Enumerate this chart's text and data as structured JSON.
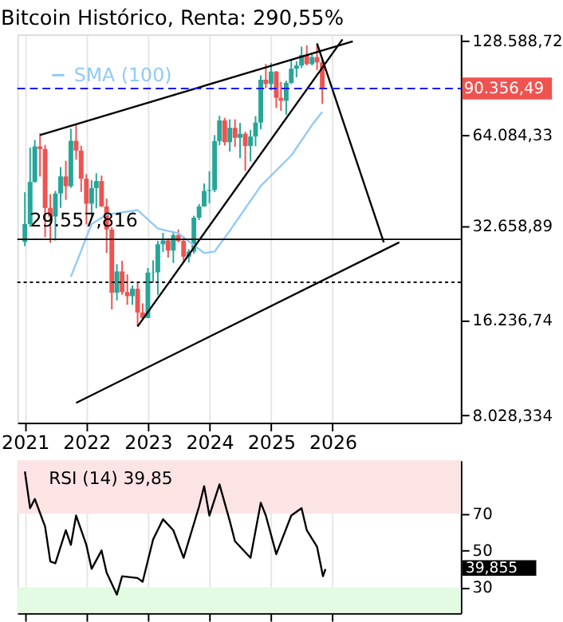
{
  "chart_data": [
    {
      "type": "candlestick",
      "title": "Bitcoin Histórico, Renta: 290,55%",
      "log": "y",
      "grid": "x",
      "legend": "top left",
      "xlim": [
        "2020-11-17",
        "2028-02-01"
      ],
      "xticks": [
        "2021",
        "2022",
        "2023",
        "2024",
        "2025",
        "2026"
      ],
      "ylim": [
        7600,
        135000
      ],
      "yticks": [
        {
          "value": 128588.72,
          "label": "128.588,72"
        },
        {
          "value": 64084.33,
          "label": "64.084,33"
        },
        {
          "value": 32658.89,
          "label": "32.658,89"
        },
        {
          "value": 16236.74,
          "label": "16.236,74"
        },
        {
          "value": 8028.334,
          "label": "8.028,334"
        }
      ],
      "ref_lines": [
        {
          "axis": "y",
          "value": 90356.49,
          "label": "90.356,49",
          "color": "#1a1aff",
          "line_style": "dashed"
        },
        {
          "axis": "y",
          "value": 29557.816,
          "label": "29.557,816",
          "color": "#000000",
          "line_style": "solid"
        },
        {
          "axis": "y",
          "value": 21500,
          "label": null,
          "color": "#000000",
          "line_style": "dotted"
        }
      ],
      "series": [
        {
          "type": "candlestick",
          "x": [
            "2021-01",
            "2021-02",
            "2021-03",
            "2021-04",
            "2021-05",
            "2021-06",
            "2021-07",
            "2021-08",
            "2021-09",
            "2021-10",
            "2021-11",
            "2021-12",
            "2022-01",
            "2022-02",
            "2022-03",
            "2022-04",
            "2022-05",
            "2022-06",
            "2022-07",
            "2022-08",
            "2022-09",
            "2022-10",
            "2022-11",
            "2022-12",
            "2023-01",
            "2023-02",
            "2023-03",
            "2023-04",
            "2023-05",
            "2023-06",
            "2023-07",
            "2023-08",
            "2023-09",
            "2023-10",
            "2023-11",
            "2023-12",
            "2024-01",
            "2024-02",
            "2024-03",
            "2024-04",
            "2024-05",
            "2024-06",
            "2024-07",
            "2024-08",
            "2024-09",
            "2024-10",
            "2024-11",
            "2024-12",
            "2025-01",
            "2025-02",
            "2025-03",
            "2025-04",
            "2025-05",
            "2025-06",
            "2025-07",
            "2025-08",
            "2025-09",
            "2025-10",
            "2025-11"
          ],
          "ohlc": [
            [
              29000,
              41900,
              28100,
              33100
            ],
            [
              33100,
              58300,
              32400,
              45200
            ],
            [
              45200,
              61700,
              45000,
              58800
            ],
            [
              58800,
              64800,
              47100,
              57700
            ],
            [
              57700,
              59500,
              30000,
              37300
            ],
            [
              37300,
              41300,
              28800,
              35000
            ],
            [
              35000,
              42300,
              29300,
              41500
            ],
            [
              41500,
              50500,
              37300,
              47100
            ],
            [
              47100,
              52900,
              39600,
              43800
            ],
            [
              43800,
              67000,
              43300,
              61300
            ],
            [
              61300,
              69000,
              53300,
              57000
            ],
            [
              57000,
              59100,
              42000,
              46300
            ],
            [
              46300,
              47900,
              33000,
              38500
            ],
            [
              38500,
              45800,
              34300,
              43200
            ],
            [
              43200,
              48200,
              37200,
              45500
            ],
            [
              45500,
              47400,
              37600,
              37700
            ],
            [
              37700,
              40000,
              26700,
              31800
            ],
            [
              31800,
              32400,
              17600,
              19900
            ],
            [
              19900,
              24600,
              18800,
              23300
            ],
            [
              23300,
              25200,
              19600,
              20000
            ],
            [
              20000,
              22800,
              18200,
              19400
            ],
            [
              19400,
              21000,
              18200,
              20500
            ],
            [
              20500,
              21400,
              15500,
              17200
            ],
            [
              17200,
              18400,
              16300,
              16500
            ],
            [
              16500,
              23900,
              16500,
              23100
            ],
            [
              23100,
              25300,
              21400,
              23150
            ],
            [
              23150,
              29200,
              19600,
              28500
            ],
            [
              28500,
              31000,
              26900,
              29300
            ],
            [
              29300,
              29800,
              25800,
              27200
            ],
            [
              27200,
              31400,
              24800,
              30500
            ],
            [
              30500,
              31800,
              28900,
              29200
            ],
            [
              29200,
              30200,
              25200,
              26000
            ],
            [
              26000,
              27500,
              24900,
              27000
            ],
            [
              27000,
              35200,
              26600,
              34700
            ],
            [
              34700,
              38400,
              34100,
              37700
            ],
            [
              37700,
              44700,
              37700,
              42300
            ],
            [
              42300,
              48900,
              38600,
              42600
            ],
            [
              42600,
              64000,
              41900,
              61200
            ],
            [
              61200,
              73800,
              59300,
              71300
            ],
            [
              71300,
              72700,
              59200,
              60700
            ],
            [
              60700,
              71900,
              56600,
              67500
            ],
            [
              67500,
              71900,
              58600,
              62700
            ],
            [
              62700,
              70000,
              53900,
              64600
            ],
            [
              64600,
              65600,
              49100,
              59000
            ],
            [
              59000,
              66500,
              52600,
              63300
            ],
            [
              63300,
              73600,
              58900,
              70200
            ],
            [
              70200,
              99600,
              66800,
              96400
            ],
            [
              96400,
              108300,
              90500,
              93400
            ],
            [
              93400,
              109300,
              89200,
              102400
            ],
            [
              102400,
              102800,
              78200,
              84300
            ],
            [
              84300,
              95000,
              76600,
              82500
            ],
            [
              82500,
              95700,
              74500,
              94200
            ],
            [
              94200,
              111900,
              93400,
              104600
            ],
            [
              104600,
              110500,
              98200,
              107100
            ],
            [
              107100,
              123200,
              105100,
              115800
            ],
            [
              115800,
              124500,
              107300,
              108200
            ],
            [
              108200,
              117900,
              107300,
              114000
            ],
            [
              114000,
              126200,
              103500,
              109600
            ],
            [
              109600,
              111200,
              80600,
              90356
            ]
          ],
          "colors": [
            "#26a69a",
            "#26a69a",
            "#26a69a",
            "#ef5350",
            "#ef5350",
            "#ef5350",
            "#26a69a",
            "#26a69a",
            "#ef5350",
            "#26a69a",
            "#ef5350",
            "#ef5350",
            "#ef5350",
            "#26a69a",
            "#26a69a",
            "#ef5350",
            "#ef5350",
            "#ef5350",
            "#26a69a",
            "#ef5350",
            "#ef5350",
            "#26a69a",
            "#ef5350",
            "#ef5350",
            "#26a69a",
            "#26a69a",
            "#26a69a",
            "#26a69a",
            "#ef5350",
            "#26a69a",
            "#ef5350",
            "#ef5350",
            "#26a69a",
            "#26a69a",
            "#26a69a",
            "#26a69a",
            "#26a69a",
            "#26a69a",
            "#26a69a",
            "#ef5350",
            "#26a69a",
            "#ef5350",
            "#26a69a",
            "#ef5350",
            "#26a69a",
            "#26a69a",
            "#26a69a",
            "#ef5350",
            "#26a69a",
            "#ef5350",
            "#ef5350",
            "#26a69a",
            "#26a69a",
            "#26a69a",
            "#26a69a",
            "#ef5350",
            "#26a69a",
            "#ef5350",
            "#ef5350"
          ]
        },
        {
          "type": "line",
          "name": "SMA (100)",
          "color": "#90caf9",
          "x": [
            "2021-10",
            "2022-02",
            "2022-05",
            "2022-11",
            "2023-03",
            "2023-07",
            "2023-12",
            "2024-02",
            "2024-05",
            "2024-11",
            "2025-05",
            "2025-09",
            "2025-11"
          ],
          "values": [
            22400,
            33100,
            35500,
            36700,
            32000,
            30900,
            26700,
            27000,
            31500,
            43900,
            55000,
            68900,
            76000
          ]
        },
        {
          "type": "line",
          "color": "#000000",
          "x": [
            "2021-04",
            "2026-05"
          ],
          "values": [
            64000,
            128000
          ]
        },
        {
          "type": "line",
          "color": "#000000",
          "x": [
            "2021-11",
            "2027-02"
          ],
          "values": [
            8800,
            28900
          ]
        },
        {
          "type": "line",
          "color": "#000000",
          "x": [
            "2022-11",
            "2026-03"
          ],
          "values": [
            15500,
            130000
          ]
        },
        {
          "type": "line",
          "color": "#000000",
          "x": [
            "2025-10",
            "2026-11"
          ],
          "values": [
            126000,
            28900
          ]
        }
      ]
    },
    {
      "type": "line",
      "grid": "x",
      "tick_labels": "y",
      "xlim": [
        "2020-11-17",
        "2028-02-01"
      ],
      "xticks": [
        "2021",
        "2022",
        "2023",
        "2024",
        "2025",
        "2026"
      ],
      "ylim": [
        16,
        99
      ],
      "yticks": [
        30,
        50,
        70
      ],
      "annotations": [
        "RSI (14)   39,85",
        "39,855"
      ],
      "bands": [
        {
          "axis": "y",
          "from": 70,
          "to": 99,
          "label": null,
          "color": "#fde4e4"
        },
        {
          "axis": "y",
          "from": 16,
          "to": 30,
          "label": null,
          "color": "#e3fbe3"
        }
      ],
      "series": [
        {
          "color": "#000000",
          "x": [
            "2021-01",
            "2021-02",
            "2021-03",
            "2021-05",
            "2021-06",
            "2021-07",
            "2021-09",
            "2021-10",
            "2021-11",
            "2022-01",
            "2022-02",
            "2022-04",
            "2022-05",
            "2022-07",
            "2022-08",
            "2022-11",
            "2022-12",
            "2023-02",
            "2023-04",
            "2023-06",
            "2023-08",
            "2023-11",
            "2023-12",
            "2024-01",
            "2024-03",
            "2024-05",
            "2024-06",
            "2024-09",
            "2024-11",
            "2024-12",
            "2025-02",
            "2025-05",
            "2025-07",
            "2025-08",
            "2025-10",
            "2025-11-05",
            "2025-11-20"
          ],
          "values": [
            93,
            73,
            78,
            63,
            44,
            43,
            61,
            53,
            69,
            53,
            40,
            50,
            38,
            26,
            36,
            35,
            33,
            56,
            67,
            61,
            46,
            74,
            85,
            69,
            86,
            66,
            55,
            46,
            76,
            69,
            48,
            69,
            73,
            61,
            52,
            36,
            39.855
          ]
        }
      ]
    }
  ]
}
